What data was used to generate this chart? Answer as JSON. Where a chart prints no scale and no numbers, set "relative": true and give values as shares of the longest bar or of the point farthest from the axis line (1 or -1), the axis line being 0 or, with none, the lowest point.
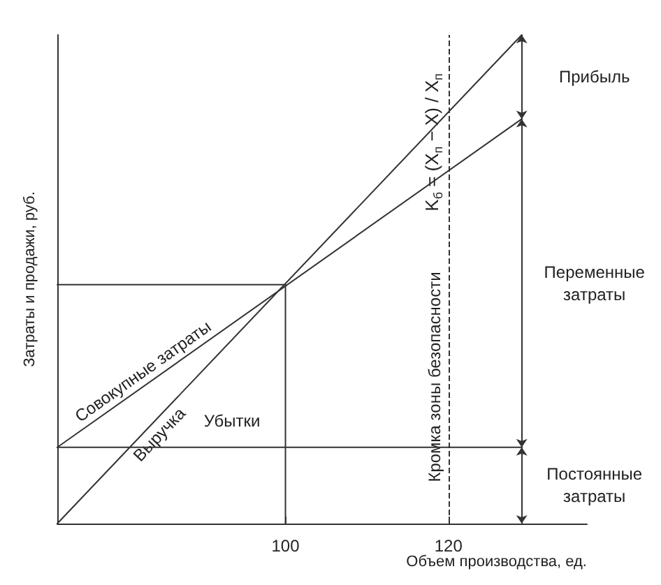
{
  "chart_data": {
    "type": "line",
    "relative": true,
    "xlabel": "Объем производства, ед.",
    "ylabel": "Затраты и продажи, руб.",
    "xlim": [
      72,
      137
    ],
    "xticks": [
      100,
      120
    ],
    "grid": false,
    "legend": false,
    "marker": "none",
    "line_style": "solid",
    "series": [
      {
        "name": "Выручка",
        "color": "#333333",
        "x": [
          72,
          129
        ],
        "values": [
          0,
          1
        ]
      },
      {
        "name": "Совокупные затраты",
        "color": "#333333",
        "x": [
          72,
          129
        ],
        "values": [
          0.156,
          0.828
        ]
      },
      {
        "color": "#333333",
        "x": [
          72,
          129
        ],
        "values": [
          0.156,
          0.156
        ]
      },
      {
        "color": "#333333",
        "x": [
          100,
          100
        ],
        "values": [
          0,
          0.489
        ]
      },
      {
        "color": "#333333",
        "x": [
          72,
          100
        ],
        "values": [
          0.489,
          0.489
        ]
      }
    ],
    "ref_lines": [
      {
        "axis": "x",
        "value": 120,
        "label": "Кромка зоны безопасности",
        "line_style": "dashed"
      }
    ],
    "annotations": [
      "Убытки",
      "Прибыль",
      "Переменные\nзатраты",
      "Постоянные\nзатраты",
      "K$_{б}$ = (X$_{п}$ − X) / X$_{п}$"
    ]
  }
}
